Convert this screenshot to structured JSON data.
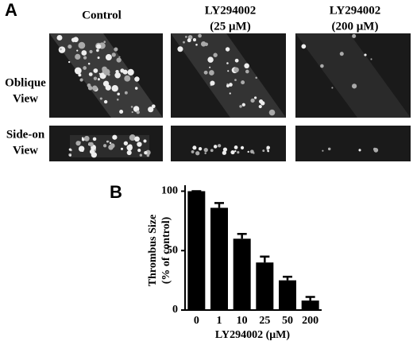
{
  "panel_a": {
    "label": "A",
    "columns": [
      [
        "Control"
      ],
      [
        "LY294002",
        "(25 μM)"
      ],
      [
        "LY294002",
        "(200 μM)"
      ]
    ],
    "rows": [
      [
        "Oblique",
        "View"
      ],
      [
        "Side-on",
        "View"
      ]
    ]
  },
  "chart_data": {
    "type": "bar",
    "label": "B",
    "y_label": [
      "Thrombus Size",
      "(% of control)"
    ],
    "x_label": "LY294002 (μM)",
    "categories": [
      "0",
      "1",
      "10",
      "25",
      "50",
      "200"
    ],
    "values": [
      100,
      86,
      60,
      40,
      25,
      8
    ],
    "errors": [
      0,
      4,
      4,
      5,
      3,
      3
    ],
    "color": "#000000",
    "ylim": [
      0,
      105
    ],
    "yticks": [
      0,
      50,
      100
    ]
  }
}
